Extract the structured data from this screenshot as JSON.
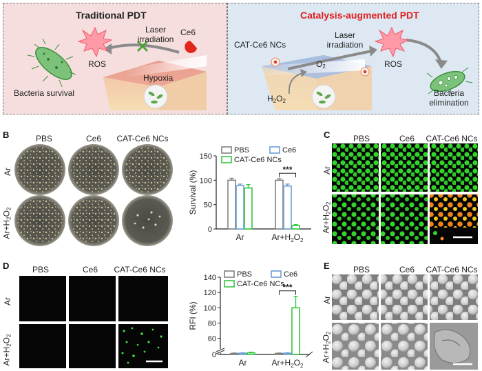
{
  "panel_a": {
    "label": "A",
    "left_title": "Traditional PDT",
    "right_title": "Catalysis-augmented PDT",
    "ros_left": "ROS",
    "laser_left": "Laser irradiation",
    "ce6": "Ce6",
    "hypoxia": "Hypoxia",
    "bacteria_survival": "Bacteria survival",
    "cat_ce6_ncs": "CAT-Ce6 NCs",
    "laser_right": "Laser irradiation",
    "ros_right": "ROS",
    "o2_base": "O",
    "o2_sub": "2",
    "h2o2_base": "H",
    "h2o2_mid": "O",
    "sub2": "2",
    "bacteria_elimination": "Bacteria elimination",
    "colors": {
      "left_bg": "#f6dede",
      "right_bg": "#dde8f3",
      "title_red": "#e02020"
    }
  },
  "panel_b": {
    "label": "B",
    "columns": [
      "PBS",
      "Ce6",
      "CAT-Ce6 NCs"
    ],
    "rows": {
      "ar": "Ar",
      "arh_base": "Ar+H",
      "arh_mid": "O",
      "sub": "2"
    }
  },
  "panel_c": {
    "label": "C",
    "columns": [
      "PBS",
      "Ce6",
      "CAT-Ce6 NCs"
    ],
    "rows": {
      "ar": "Ar",
      "arh_base": "Ar+H",
      "arh_mid": "O",
      "sub": "2"
    }
  },
  "panel_d": {
    "label": "D",
    "columns": [
      "PBS",
      "Ce6",
      "CAT-Ce6 NCs"
    ],
    "rows": {
      "ar": "Ar",
      "arh_base": "Ar+H",
      "arh_mid": "O",
      "sub": "2"
    }
  },
  "panel_e": {
    "label": "E",
    "columns": [
      "PBS",
      "Ce6",
      "CAT-Ce6 NCs"
    ],
    "rows": {
      "ar": "Ar",
      "arh_base": "Ar+H",
      "arh_mid": "O",
      "sub": "2"
    }
  },
  "chart_data": [
    {
      "type": "bar",
      "panel": "B",
      "ylabel": "Survival (%)",
      "categories": [
        "Ar",
        "Ar+H2O2"
      ],
      "category_labels": [
        {
          "base": "Ar",
          "sub": ""
        },
        {
          "base": "Ar+H",
          "mid": "O",
          "sub": "2"
        }
      ],
      "ylim": [
        0,
        150
      ],
      "yticks": [
        0,
        50,
        100,
        150
      ],
      "series": [
        {
          "name": "PBS",
          "color": "#808080",
          "values": [
            100,
            100
          ],
          "errors": [
            4,
            3
          ]
        },
        {
          "name": "Ce6",
          "color": "#6a9fd6",
          "values": [
            89,
            88
          ],
          "errors": [
            3,
            4
          ]
        },
        {
          "name": "CAT-Ce6 NCs",
          "color": "#33c640",
          "values": [
            84,
            7
          ],
          "errors": [
            7,
            2
          ]
        }
      ],
      "annotation": "***"
    },
    {
      "type": "bar",
      "panel": "D",
      "ylabel": "RFI (%)",
      "categories": [
        "Ar",
        "Ar+H2O2"
      ],
      "category_labels": [
        {
          "base": "Ar",
          "sub": ""
        },
        {
          "base": "Ar+H",
          "mid": "O",
          "sub": "2"
        }
      ],
      "ylim": [
        0,
        140
      ],
      "yticks": [
        0,
        60,
        80,
        100,
        120,
        140
      ],
      "axis_break": [
        2,
        48
      ],
      "series": [
        {
          "name": "PBS",
          "color": "#808080",
          "values": [
            0.5,
            0.5
          ],
          "errors": [
            0.2,
            0.2
          ]
        },
        {
          "name": "Ce6",
          "color": "#6a9fd6",
          "values": [
            0.6,
            0.6
          ],
          "errors": [
            0.2,
            0.2
          ]
        },
        {
          "name": "CAT-Ce6 NCs",
          "color": "#33c640",
          "values": [
            0.8,
            100
          ],
          "errors": [
            0.3,
            15
          ]
        }
      ],
      "annotation": "***"
    }
  ]
}
